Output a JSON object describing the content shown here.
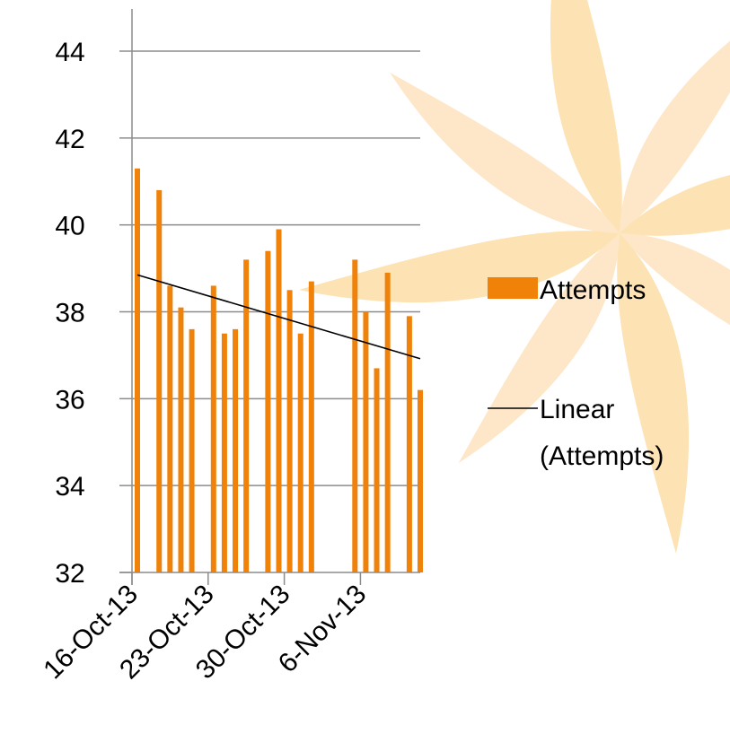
{
  "chart_data": {
    "type": "bar",
    "x": [
      "2013-10-16",
      "2013-10-18",
      "2013-10-19",
      "2013-10-20",
      "2013-10-21",
      "2013-10-23",
      "2013-10-24",
      "2013-10-25",
      "2013-10-26",
      "2013-10-28",
      "2013-10-29",
      "2013-10-30",
      "2013-10-31",
      "2013-11-01",
      "2013-11-05",
      "2013-11-06",
      "2013-11-07",
      "2013-11-08",
      "2013-11-10",
      "2013-11-11"
    ],
    "series": [
      {
        "name": "Attempts",
        "color": "#f0820a",
        "values": [
          41.3,
          40.8,
          38.6,
          38.1,
          37.6,
          38.6,
          37.5,
          37.6,
          39.2,
          39.4,
          39.9,
          38.5,
          37.5,
          38.7,
          39.2,
          38.0,
          36.7,
          38.9,
          37.9,
          36.2
        ]
      }
    ],
    "trendline": {
      "name": "Linear (Attempts)",
      "type": "linear",
      "color": "#000000",
      "start": {
        "x": "2013-10-16",
        "y": 38.85
      },
      "end": {
        "x": "2013-11-11",
        "y": 36.92
      }
    },
    "x_ticks": [
      {
        "date": "2013-10-16",
        "label": "16-Oct-13"
      },
      {
        "date": "2013-10-23",
        "label": "23-Oct-13"
      },
      {
        "date": "2013-10-30",
        "label": "30-Oct-13"
      },
      {
        "date": "2013-11-06",
        "label": "6-Nov-13"
      }
    ],
    "xlim": [
      "2013-10-16",
      "2013-11-11"
    ],
    "y_ticks": [
      "32",
      "34",
      "36",
      "38",
      "40",
      "42",
      "44"
    ],
    "ylim": [
      32,
      44
    ],
    "grid": true,
    "legend_position": "right",
    "background_watermark": "orange-pinwheel-logo",
    "title": "",
    "xlabel": "",
    "ylabel": ""
  }
}
